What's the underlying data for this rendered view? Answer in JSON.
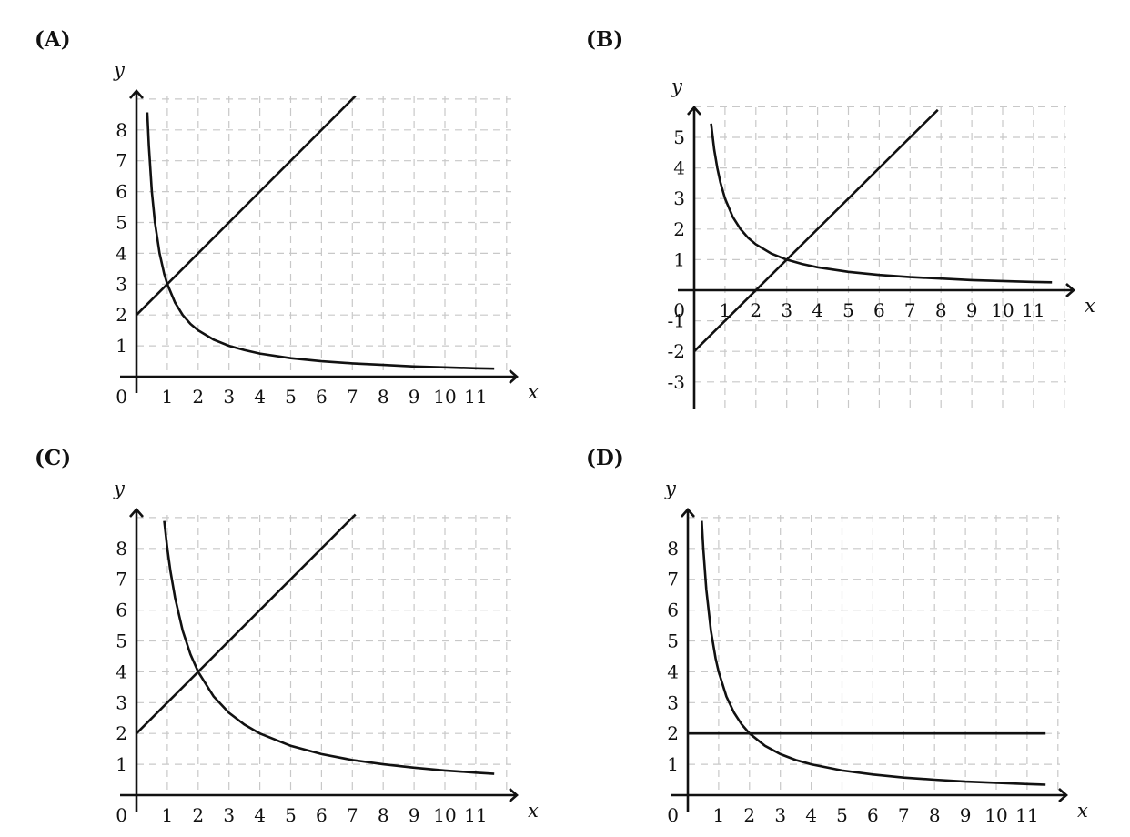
{
  "chart_data": [
    {
      "type": "line",
      "label": "(A)",
      "xlabel": "x",
      "ylabel": "y",
      "xlim": [
        0,
        12
      ],
      "ylim": [
        0,
        9
      ],
      "xticks": [
        "1",
        "2",
        "3",
        "4",
        "5",
        "6",
        "7",
        "8",
        "9",
        "10",
        "11"
      ],
      "yticks": [
        "1",
        "2",
        "3",
        "4",
        "5",
        "6",
        "7",
        "8"
      ],
      "origin_label": "0",
      "series": [
        {
          "kind": "curve",
          "x": [
            0.35,
            0.4,
            0.5,
            0.6,
            0.75,
            0.9,
            1,
            1.25,
            1.5,
            1.75,
            2,
            2.5,
            3,
            3.5,
            4,
            5,
            6,
            7,
            8,
            9,
            10,
            11,
            11.6
          ],
          "y": [
            8.57,
            7.5,
            6,
            5,
            4,
            3.33,
            3,
            2.4,
            2,
            1.71,
            1.5,
            1.2,
            1,
            0.86,
            0.75,
            0.6,
            0.5,
            0.43,
            0.38,
            0.33,
            0.3,
            0.27,
            0.26
          ]
        },
        {
          "kind": "line",
          "x": [
            0,
            7.1
          ],
          "y": [
            2,
            9.1
          ]
        }
      ]
    },
    {
      "type": "line",
      "label": "(B)",
      "xlabel": "x",
      "ylabel": "y",
      "xlim": [
        0,
        12
      ],
      "ylim": [
        -4,
        6
      ],
      "xticks": [
        "1",
        "2",
        "3",
        "4",
        "5",
        "6",
        "7",
        "8",
        "9",
        "10",
        "11"
      ],
      "yticks": [
        "-3",
        "-2",
        "-1",
        "1",
        "2",
        "3",
        "4",
        "5"
      ],
      "origin_label": "0",
      "series": [
        {
          "kind": "curve",
          "x": [
            0.55,
            0.65,
            0.75,
            0.85,
            1,
            1.25,
            1.5,
            1.75,
            2,
            2.5,
            3,
            3.5,
            4,
            5,
            6,
            7,
            8,
            9,
            10,
            11,
            11.6
          ],
          "y": [
            5.45,
            4.6,
            4,
            3.53,
            3,
            2.4,
            2,
            1.71,
            1.5,
            1.2,
            1,
            0.86,
            0.75,
            0.6,
            0.5,
            0.43,
            0.38,
            0.33,
            0.3,
            0.27,
            0.26
          ]
        },
        {
          "kind": "line",
          "x": [
            0,
            7.9
          ],
          "y": [
            -2,
            5.9
          ]
        }
      ]
    },
    {
      "type": "line",
      "label": "(C)",
      "xlabel": "x",
      "ylabel": "y",
      "xlim": [
        0,
        12
      ],
      "ylim": [
        0,
        9
      ],
      "xticks": [
        "1",
        "2",
        "3",
        "4",
        "5",
        "6",
        "7",
        "8",
        "9",
        "10",
        "11"
      ],
      "yticks": [
        "1",
        "2",
        "3",
        "4",
        "5",
        "6",
        "7",
        "8"
      ],
      "origin_label": "0",
      "series": [
        {
          "kind": "curve",
          "x": [
            0.9,
            1,
            1.1,
            1.25,
            1.5,
            1.75,
            2,
            2.5,
            3,
            3.5,
            4,
            5,
            6,
            7,
            8,
            9,
            10,
            11,
            11.6
          ],
          "y": [
            8.89,
            8,
            7.27,
            6.4,
            5.33,
            4.57,
            4,
            3.2,
            2.67,
            2.29,
            2,
            1.6,
            1.33,
            1.14,
            1,
            0.89,
            0.8,
            0.73,
            0.69
          ]
        },
        {
          "kind": "line",
          "x": [
            0,
            7.1
          ],
          "y": [
            2,
            9.1
          ]
        }
      ]
    },
    {
      "type": "line",
      "label": "(D)",
      "xlabel": "x",
      "ylabel": "y",
      "xlim": [
        0,
        12
      ],
      "ylim": [
        0,
        9
      ],
      "xticks": [
        "1",
        "2",
        "3",
        "4",
        "5",
        "6",
        "7",
        "8",
        "9",
        "10",
        "11"
      ],
      "yticks": [
        "1",
        "2",
        "3",
        "4",
        "5",
        "6",
        "7",
        "8"
      ],
      "origin_label": "0",
      "series": [
        {
          "kind": "curve",
          "x": [
            0.45,
            0.5,
            0.6,
            0.75,
            0.9,
            1,
            1.25,
            1.5,
            1.75,
            2,
            2.5,
            3,
            3.5,
            4,
            5,
            6,
            7,
            8,
            9,
            10,
            11,
            11.6
          ],
          "y": [
            8.89,
            8,
            6.67,
            5.33,
            4.44,
            4,
            3.2,
            2.67,
            2.29,
            2,
            1.6,
            1.33,
            1.14,
            1,
            0.8,
            0.67,
            0.57,
            0.5,
            0.44,
            0.4,
            0.36,
            0.34
          ]
        },
        {
          "kind": "line",
          "x": [
            0,
            11.6
          ],
          "y": [
            2,
            2
          ]
        }
      ]
    }
  ]
}
